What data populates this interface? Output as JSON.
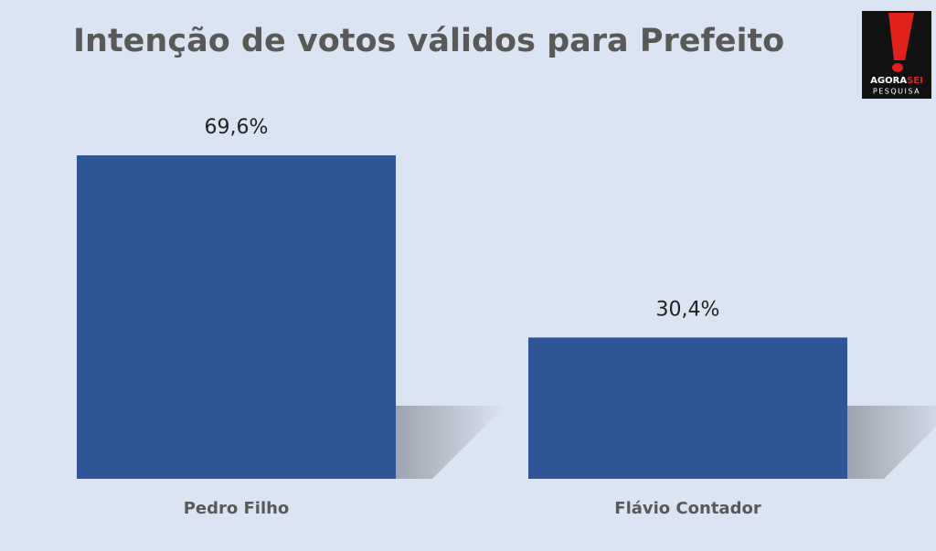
{
  "chart_data": {
    "type": "bar",
    "title": "Intenção de votos válidos para Prefeito",
    "categories": [
      "Pedro Filho",
      "Flávio Contador"
    ],
    "values": [
      69.6,
      30.4
    ],
    "value_labels": [
      "69,6%",
      "30,4%"
    ],
    "color": "#2e5596"
  },
  "logo": {
    "brand_left": "AGORA",
    "brand_right": "SEI",
    "tagline": "PESQUISA"
  }
}
